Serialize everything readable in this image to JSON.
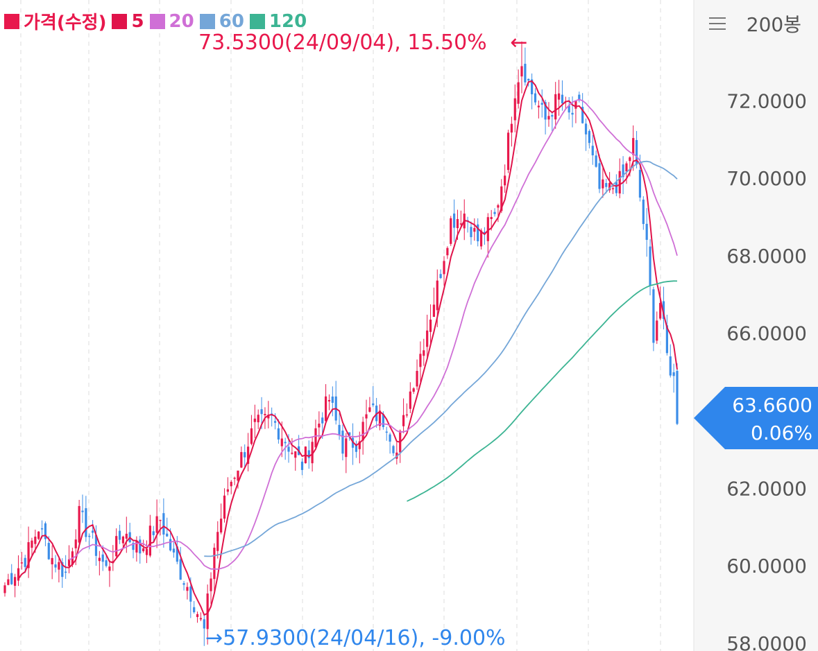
{
  "legend": {
    "price_label": "가격(수정)",
    "ma5_label": "5",
    "ma20_label": "20",
    "ma60_label": "60",
    "ma120_label": "120"
  },
  "toolbar": {
    "count_label": "200봉",
    "menu_icon": "hamburger-menu-icon"
  },
  "colors": {
    "up": "#e8184c",
    "down": "#3b8de8",
    "ma5": "#e0134a",
    "ma20": "#cf6fd6",
    "ma60": "#74a6d8",
    "ma120": "#3cb493",
    "tag": "#2f86ec"
  },
  "annotations": {
    "max_text": "73.5300(24/09/04), 15.50%",
    "min_text": "57.9300(24/04/16), -9.00%",
    "max_arrow": "←",
    "min_arrow": "→"
  },
  "current": {
    "price": "63.6600",
    "change": "0.06%",
    "value": 63.66
  },
  "chart_data": {
    "type": "candlestick",
    "y_axis": {
      "labels": [
        "72.0000",
        "70.0000",
        "68.0000",
        "66.0000",
        "62.0000",
        "60.0000",
        "58.0000"
      ],
      "values": [
        72,
        70,
        68,
        66,
        62,
        60,
        58
      ],
      "range": [
        57.8,
        74.6
      ]
    },
    "bar_count": 200,
    "max": {
      "value": 73.53,
      "date": "24/09/04",
      "change_pct": 15.5
    },
    "min": {
      "value": 57.93,
      "date": "24/04/16",
      "change_pct": -9.0
    },
    "close_anchors": [
      [
        0,
        59.5
      ],
      [
        6,
        60.2
      ],
      [
        10,
        61.0
      ],
      [
        14,
        60.2
      ],
      [
        18,
        59.8
      ],
      [
        22,
        61.3
      ],
      [
        26,
        60.6
      ],
      [
        30,
        59.9
      ],
      [
        35,
        60.9
      ],
      [
        40,
        60.4
      ],
      [
        46,
        61.2
      ],
      [
        50,
        60.2
      ],
      [
        55,
        59.3
      ],
      [
        59,
        58.3
      ],
      [
        62,
        60.5
      ],
      [
        66,
        62.0
      ],
      [
        70,
        62.8
      ],
      [
        74,
        63.6
      ],
      [
        79,
        63.8
      ],
      [
        84,
        63.1
      ],
      [
        88,
        62.6
      ],
      [
        92,
        63.5
      ],
      [
        96,
        64.3
      ],
      [
        100,
        63.1
      ],
      [
        104,
        63.2
      ],
      [
        108,
        64.0
      ],
      [
        113,
        63.7
      ],
      [
        116,
        62.9
      ],
      [
        120,
        64.5
      ],
      [
        124,
        65.8
      ],
      [
        128,
        67.2
      ],
      [
        132,
        68.9
      ],
      [
        136,
        69.1
      ],
      [
        140,
        68.4
      ],
      [
        145,
        69.0
      ],
      [
        148,
        70.3
      ],
      [
        151,
        72.3
      ],
      [
        153,
        73.0
      ],
      [
        156,
        72.2
      ],
      [
        160,
        71.5
      ],
      [
        164,
        72.1
      ],
      [
        167,
        71.6
      ],
      [
        170,
        71.8
      ],
      [
        173,
        70.8
      ],
      [
        176,
        69.7
      ],
      [
        179,
        69.7
      ],
      [
        183,
        70.0
      ],
      [
        186,
        70.9
      ],
      [
        188,
        69.5
      ],
      [
        190,
        68.2
      ],
      [
        192,
        66.0
      ],
      [
        194,
        66.8
      ],
      [
        196,
        65.4
      ],
      [
        198,
        64.8
      ],
      [
        199,
        63.66
      ]
    ],
    "moving_averages": [
      {
        "name": "5",
        "period": 5
      },
      {
        "name": "20",
        "period": 20
      },
      {
        "name": "60",
        "period": 60
      },
      {
        "name": "120",
        "period": 120
      }
    ]
  }
}
